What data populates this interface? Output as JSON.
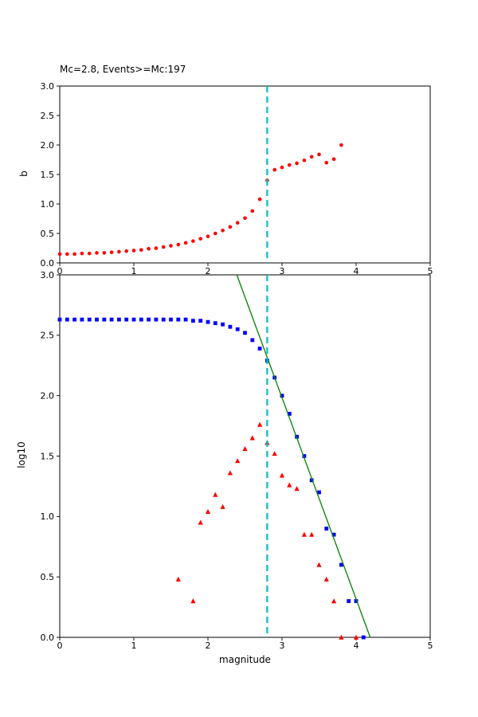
{
  "figure": {
    "background": "#ffffff"
  },
  "chart_data": [
    {
      "type": "scatter",
      "id": "b-value-vs-magnitude-plot",
      "title": "Mc=2.8, Events>=Mc:197",
      "xlabel": "",
      "ylabel": "b",
      "xlim": [
        0,
        5
      ],
      "ylim": [
        0,
        3
      ],
      "grid": false,
      "legend": "none",
      "xticks": [
        0,
        1,
        2,
        3,
        4,
        5
      ],
      "xticklabels": [
        "0",
        "1",
        "2",
        "3",
        "4",
        "5"
      ],
      "yticks": [
        0,
        0.5,
        1,
        1.5,
        2,
        2.5,
        3
      ],
      "yticklabels": [
        "0.0",
        "0.5",
        "1.0",
        "1.5",
        "2.0",
        "2.5",
        "3.0"
      ],
      "vline": {
        "x": 2.8,
        "color": "#00bfbf",
        "style": "dashed",
        "width": 2.2
      },
      "series": [
        {
          "name": "b-value-points",
          "marker": "dot",
          "color": "#ff0000",
          "x": [
            0.0,
            0.1,
            0.2,
            0.3,
            0.4,
            0.5,
            0.6,
            0.7,
            0.8,
            0.9,
            1.0,
            1.1,
            1.2,
            1.3,
            1.4,
            1.5,
            1.6,
            1.7,
            1.8,
            1.9,
            2.0,
            2.1,
            2.2,
            2.3,
            2.4,
            2.5,
            2.6,
            2.7,
            2.8,
            2.9,
            3.0,
            3.1,
            3.2,
            3.3,
            3.4,
            3.5,
            3.6,
            3.7,
            3.8
          ],
          "y": [
            0.15,
            0.15,
            0.15,
            0.16,
            0.16,
            0.17,
            0.17,
            0.18,
            0.19,
            0.2,
            0.21,
            0.22,
            0.24,
            0.25,
            0.27,
            0.29,
            0.31,
            0.34,
            0.37,
            0.41,
            0.45,
            0.5,
            0.55,
            0.61,
            0.68,
            0.76,
            0.88,
            1.08,
            1.4,
            1.58,
            1.62,
            1.66,
            1.69,
            1.74,
            1.8,
            1.84,
            1.7,
            1.76,
            2.0
          ]
        }
      ]
    },
    {
      "type": "scatter",
      "id": "frequency-magnitude-distribution-plot",
      "title": "",
      "xlabel": "magnitude",
      "ylabel": "log10",
      "xlim": [
        0,
        5
      ],
      "ylim": [
        0,
        3
      ],
      "grid": false,
      "legend": "none",
      "xticks": [
        0,
        1,
        2,
        3,
        4,
        5
      ],
      "xticklabels": [
        "0",
        "1",
        "2",
        "3",
        "4",
        "5"
      ],
      "yticks": [
        0,
        0.5,
        1,
        1.5,
        2,
        2.5,
        3
      ],
      "yticklabels": [
        "0.0",
        "0.5",
        "1.0",
        "1.5",
        "2.0",
        "2.5",
        "3.0"
      ],
      "vline": {
        "x": 2.8,
        "color": "#00bfbf",
        "style": "dashed",
        "width": 2.2
      },
      "series": [
        {
          "name": "cumulative-counts",
          "marker": "square",
          "color": "#0000ff",
          "x": [
            0.0,
            0.1,
            0.2,
            0.3,
            0.4,
            0.5,
            0.6,
            0.7,
            0.8,
            0.9,
            1.0,
            1.1,
            1.2,
            1.3,
            1.4,
            1.5,
            1.6,
            1.7,
            1.8,
            1.9,
            2.0,
            2.1,
            2.2,
            2.3,
            2.4,
            2.5,
            2.6,
            2.7,
            2.8,
            2.9,
            3.0,
            3.1,
            3.2,
            3.3,
            3.4,
            3.5,
            3.6,
            3.7,
            3.8,
            3.9,
            4.0,
            4.1
          ],
          "y": [
            2.63,
            2.63,
            2.63,
            2.63,
            2.63,
            2.63,
            2.63,
            2.63,
            2.63,
            2.63,
            2.63,
            2.63,
            2.63,
            2.63,
            2.63,
            2.63,
            2.63,
            2.63,
            2.62,
            2.62,
            2.61,
            2.6,
            2.59,
            2.57,
            2.55,
            2.52,
            2.46,
            2.39,
            2.29,
            2.15,
            2.0,
            1.85,
            1.66,
            1.5,
            1.3,
            1.2,
            0.9,
            0.85,
            0.6,
            0.3,
            0.3,
            0.0
          ]
        },
        {
          "name": "noncumulative-counts",
          "marker": "triangle",
          "color": "#ff0000",
          "x": [
            1.6,
            1.8,
            1.9,
            2.0,
            2.1,
            2.2,
            2.3,
            2.4,
            2.5,
            2.6,
            2.7,
            2.8,
            2.9,
            3.0,
            3.1,
            3.2,
            3.3,
            3.4,
            3.5,
            3.6,
            3.7,
            3.8,
            4.0
          ],
          "y": [
            0.48,
            0.3,
            0.95,
            1.04,
            1.18,
            1.08,
            1.36,
            1.46,
            1.56,
            1.65,
            1.76,
            1.61,
            1.52,
            1.34,
            1.26,
            1.23,
            0.85,
            0.85,
            0.6,
            0.48,
            0.3,
            0.0,
            0.0
          ]
        },
        {
          "name": "gutenberg-richter-fit-line",
          "marker": "line",
          "color": "#008000",
          "x": [
            2.39,
            4.19
          ],
          "y": [
            3.0,
            0.0
          ]
        }
      ]
    }
  ]
}
